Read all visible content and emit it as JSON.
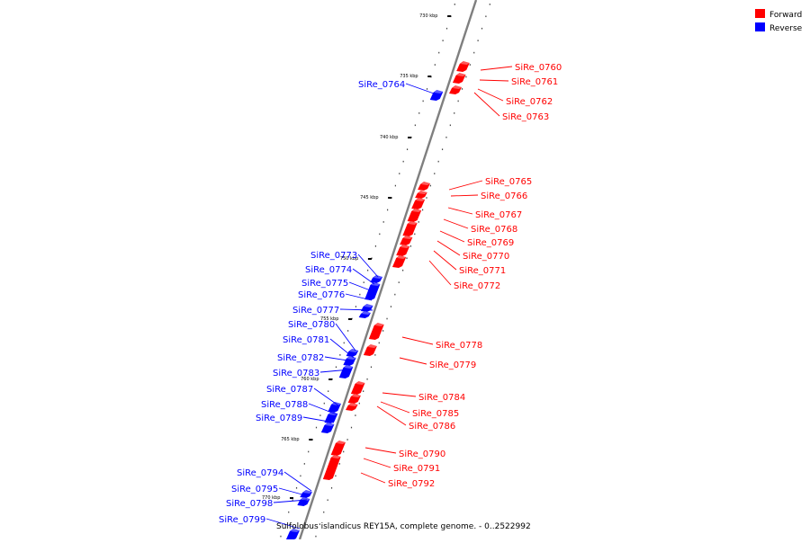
{
  "colors": {
    "forward": "#ff0000",
    "reverse": "#0000ff",
    "axis": "#7f7f7f"
  },
  "legend": {
    "forward": "Forward",
    "reverse": "Reverse"
  },
  "caption": "Sulfolobus islandicus REY15A, complete genome. - 0..2522992",
  "ticks": [
    "730 kbp",
    "735 kbp",
    "740 kbp",
    "745 kbp",
    "750 kbp",
    "755 kbp",
    "760 kbp",
    "765 kbp",
    "770 kbp"
  ],
  "forward_genes": [
    "SiRe_0760",
    "SiRe_0761",
    "SiRe_0762",
    "SiRe_0763",
    "SiRe_0765",
    "SiRe_0766",
    "SiRe_0767",
    "SiRe_0768",
    "SiRe_0769",
    "SiRe_0770",
    "SiRe_0771",
    "SiRe_0772",
    "SiRe_0778",
    "SiRe_0779",
    "SiRe_0784",
    "SiRe_0785",
    "SiRe_0786",
    "SiRe_0790",
    "SiRe_0791",
    "SiRe_0792"
  ],
  "reverse_genes": [
    "SiRe_0764",
    "SiRe_0773",
    "SiRe_0774",
    "SiRe_0775",
    "SiRe_0776",
    "SiRe_0777",
    "SiRe_0780",
    "SiRe_0781",
    "SiRe_0782",
    "SiRe_0783",
    "SiRe_0787",
    "SiRe_0788",
    "SiRe_0789",
    "SiRe_0794",
    "SiRe_0795",
    "SiRe_0798",
    "SiRe_0799"
  ]
}
